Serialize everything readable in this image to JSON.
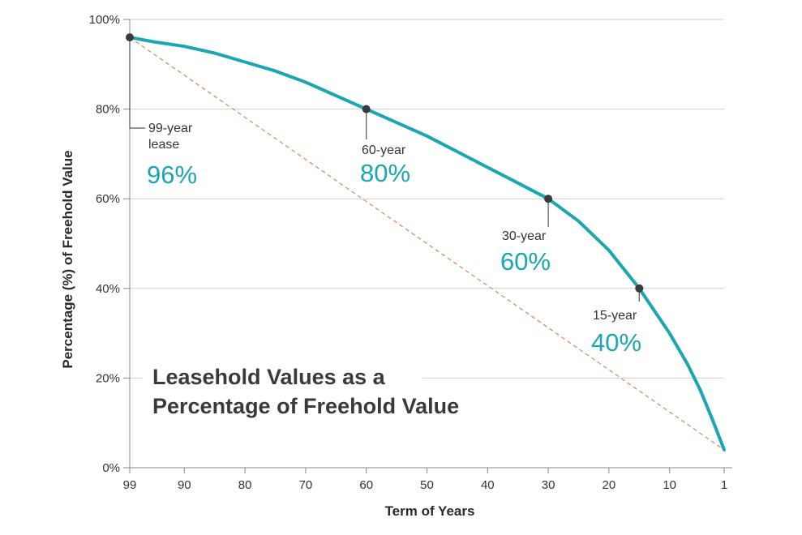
{
  "chart_data": {
    "type": "line",
    "title": "Leasehold Values as a Percentage of Freehold Value",
    "title_lines": [
      "Leasehold Values as a",
      "Percentage of Freehold Value"
    ],
    "xlabel": "Term of Years",
    "ylabel": "Percentage (%) of Freehold Value",
    "x_reversed": true,
    "xlim": [
      99,
      1
    ],
    "ylim": [
      0,
      100
    ],
    "x_ticks": [
      99,
      90,
      80,
      70,
      60,
      50,
      40,
      30,
      20,
      10,
      1
    ],
    "y_ticks": [
      0,
      20,
      40,
      60,
      80,
      100
    ],
    "y_tick_labels": [
      "0%",
      "20%",
      "40%",
      "60%",
      "80%",
      "100%"
    ],
    "grid": "horizontal",
    "line_color": "#1aa6b3",
    "reference_line_color": "#d9905e",
    "series": [
      {
        "values_x": [
          99,
          97,
          95,
          90,
          85,
          80,
          75,
          70,
          65,
          60,
          55,
          50,
          45,
          40,
          35,
          30,
          25,
          20,
          15,
          10,
          7,
          5,
          3,
          2,
          1
        ],
        "values_y": [
          96,
          95.5,
          95,
          94,
          92.5,
          90.5,
          88.5,
          86,
          83,
          80,
          77,
          74,
          70.5,
          67,
          63.5,
          60,
          55,
          48.5,
          40,
          30,
          23,
          17.5,
          11,
          7.5,
          4
        ]
      },
      {
        "values_x": [
          99,
          1
        ],
        "values_y": [
          96,
          4
        ]
      }
    ],
    "annotations": [
      {
        "x": 99,
        "y": 96,
        "label_lines": [
          "99-year",
          "lease"
        ],
        "value": "96%"
      },
      {
        "x": 60,
        "y": 80,
        "label_lines": [
          "60-year"
        ],
        "value": "80%"
      },
      {
        "x": 30,
        "y": 60,
        "label_lines": [
          "30-year"
        ],
        "value": "60%"
      },
      {
        "x": 15,
        "y": 40,
        "label_lines": [
          "15-year"
        ],
        "value": "40%"
      }
    ]
  }
}
